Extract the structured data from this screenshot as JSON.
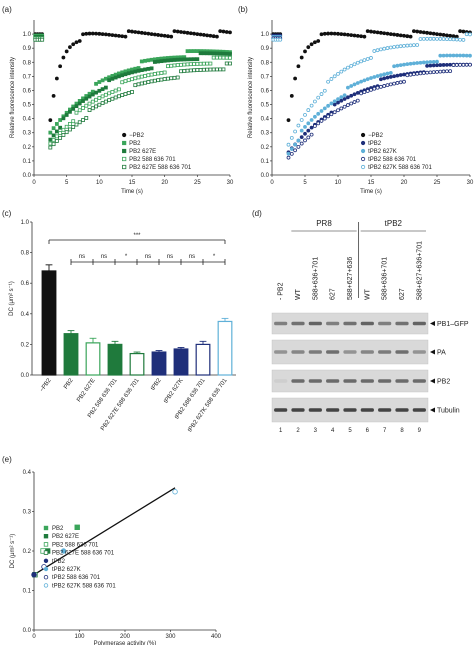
{
  "panels": {
    "a": "(a)",
    "b": "(b)",
    "c": "(c)",
    "d": "(d)",
    "e": "(e)"
  },
  "colors": {
    "black": "#111111",
    "green_light": "#3aa55a",
    "green_dark": "#1f7a3c",
    "blue_light": "#5fb0d8",
    "blue_dark": "#1f2f7a",
    "blue_mid": "#3a7bd5"
  },
  "chart_data": [
    {
      "id": "a",
      "type": "scatter",
      "xlabel": "Time (s)",
      "ylabel": "Relative fluorescence intensity",
      "xlim": [
        0,
        30
      ],
      "ylim": [
        0,
        1.1
      ],
      "xticks": [
        0,
        5,
        10,
        15,
        20,
        25,
        30
      ],
      "yticks": [
        0.0,
        0.1,
        0.2,
        0.3,
        0.4,
        0.5,
        0.6,
        0.7,
        0.8,
        0.9,
        1.0
      ],
      "legend_position": "bottom-right",
      "series": [
        {
          "name": "−PB2",
          "marker": "filled-circle",
          "color": "#111111",
          "plateau": 1.0,
          "tau": 1.5,
          "y0": 0.38
        },
        {
          "name": "PB2",
          "marker": "filled-square",
          "color": "#3aa55a",
          "plateau": 0.92,
          "tau": 9.0,
          "y0": 0.28
        },
        {
          "name": "PB2 627E",
          "marker": "filled-square",
          "color": "#1f7a3c",
          "plateau": 0.9,
          "tau": 9.5,
          "y0": 0.26
        },
        {
          "name": "PB2 588 636 701",
          "marker": "open-square",
          "color": "#3aa55a",
          "plateau": 0.88,
          "tau": 11.0,
          "y0": 0.22
        },
        {
          "name": "PB2 627E 588 636 701",
          "marker": "open-square",
          "color": "#1f7a3c",
          "plateau": 0.84,
          "tau": 12.0,
          "y0": 0.18
        }
      ]
    },
    {
      "id": "b",
      "type": "scatter",
      "xlabel": "Time (s)",
      "ylabel": "Relative fluorescence intensity",
      "xlim": [
        0,
        30
      ],
      "ylim": [
        0,
        1.1
      ],
      "xticks": [
        0,
        5,
        10,
        15,
        20,
        25,
        30
      ],
      "yticks": [
        0.0,
        0.1,
        0.2,
        0.3,
        0.4,
        0.5,
        0.6,
        0.7,
        0.8,
        0.9,
        1.0
      ],
      "legend_position": "bottom-right",
      "series": [
        {
          "name": "−PB2",
          "marker": "filled-circle",
          "color": "#111111",
          "plateau": 1.0,
          "tau": 1.5,
          "y0": 0.38
        },
        {
          "name": "tPB2",
          "marker": "filled-circle",
          "color": "#1f2f7a",
          "plateau": 0.86,
          "tau": 11.0,
          "y0": 0.14
        },
        {
          "name": "tPB2 627K",
          "marker": "filled-circle",
          "color": "#5fb0d8",
          "plateau": 0.9,
          "tau": 10.0,
          "y0": 0.16
        },
        {
          "name": "tPB2 588 636 701",
          "marker": "open-circle",
          "color": "#1f2f7a",
          "plateau": 0.85,
          "tau": 12.0,
          "y0": 0.12
        },
        {
          "name": "tPB2 627K 588 636 701",
          "marker": "open-circle",
          "color": "#5fb0d8",
          "plateau": 1.0,
          "tau": 7.5,
          "y0": 0.2
        }
      ]
    },
    {
      "id": "c",
      "type": "bar",
      "ylabel": "DC (μm² s⁻¹)",
      "ylim": [
        0,
        1.0
      ],
      "yticks": [
        0.0,
        0.2,
        0.4,
        0.6,
        0.8,
        1.0
      ],
      "categories": [
        "−PB2",
        "PB2",
        "PB2 627E",
        "PB2 588 636 701",
        "PB2 627E 588 636 701",
        "tPB2",
        "tPB2 627K",
        "tPB2 588 636 701",
        "tPB2 627K 588 636 701"
      ],
      "values": [
        0.68,
        0.27,
        0.21,
        0.2,
        0.14,
        0.15,
        0.17,
        0.2,
        0.35
      ],
      "errors": [
        0.04,
        0.02,
        0.03,
        0.02,
        0.01,
        0.01,
        0.01,
        0.02,
        0.02
      ],
      "bar_fill": [
        "#111111",
        "#1f7a3c",
        "#ffffff",
        "#1f7a3c",
        "#ffffff",
        "#1f2f7a",
        "#1f2f7a",
        "#ffffff",
        "#ffffff"
      ],
      "bar_stroke": [
        "#111111",
        "#1f7a3c",
        "#3aa55a",
        "#1f7a3c",
        "#1f7a3c",
        "#1f2f7a",
        "#1f2f7a",
        "#1f2f7a",
        "#5fb0d8"
      ],
      "significance": {
        "top": "***",
        "pairs": [
          "ns",
          "ns",
          "*",
          "ns",
          "ns",
          "ns",
          "*"
        ]
      }
    },
    {
      "id": "e",
      "type": "scatter",
      "xlabel": "Polymerase activity (%)",
      "ylabel": "DC (μm² s⁻¹)",
      "xlim": [
        0,
        400
      ],
      "ylim": [
        0,
        0.4
      ],
      "xticks": [
        0,
        100,
        200,
        300,
        400
      ],
      "yticks": [
        0.0,
        0.1,
        0.2,
        0.3,
        0.4
      ],
      "fit_line": {
        "x": [
          0,
          310
        ],
        "y": [
          0.14,
          0.36
        ]
      },
      "legend_position": "top-left",
      "points": [
        {
          "name": "PB2",
          "x": 95,
          "y": 0.26,
          "marker": "filled-square",
          "color": "#3aa55a"
        },
        {
          "name": "PB2 627E",
          "x": 30,
          "y": 0.2,
          "marker": "filled-square",
          "color": "#1f7a3c"
        },
        {
          "name": "PB2 588 636 701",
          "x": 20,
          "y": 0.2,
          "marker": "open-square",
          "color": "#3aa55a"
        },
        {
          "name": "PB2 627E 588 636 701",
          "x": 2,
          "y": 0.14,
          "marker": "open-square",
          "color": "#1f7a3c"
        },
        {
          "name": "tPB2",
          "x": 0,
          "y": 0.14,
          "marker": "filled-circle",
          "color": "#1f2f7a"
        },
        {
          "name": "tPB2 627K",
          "x": 65,
          "y": 0.2,
          "marker": "filled-circle",
          "color": "#5fb0d8"
        },
        {
          "name": "tPB2 588 636 701",
          "x": 22,
          "y": 0.16,
          "marker": "open-circle",
          "color": "#1f2f7a"
        },
        {
          "name": "tPB2 627K 588 636 701",
          "x": 310,
          "y": 0.35,
          "marker": "open-circle",
          "color": "#5fb0d8"
        }
      ]
    }
  ],
  "blot": {
    "groups": [
      {
        "label": "PR8"
      },
      {
        "label": "tPB2"
      }
    ],
    "lanes": [
      "- PB2",
      "WT",
      "588+636+701",
      "627",
      "588+627+636",
      "WT",
      "588+636+701",
      "627",
      "588+627+636+701"
    ],
    "lane_numbers": [
      "1",
      "2",
      "3",
      "4",
      "5",
      "6",
      "7",
      "8",
      "9"
    ],
    "rows": [
      "PB1–GFP",
      "PA",
      "PB2",
      "Tubulin"
    ]
  }
}
